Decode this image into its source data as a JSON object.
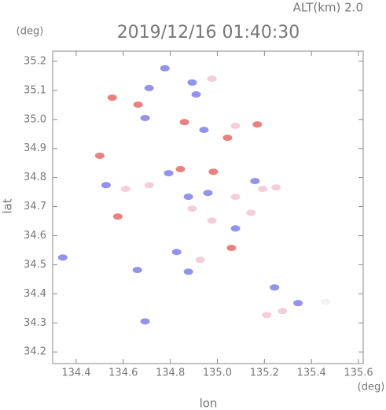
{
  "chart_data": {
    "type": "scatter",
    "title": "2019/12/16 01:40:30",
    "subtitle": "ALT(km) 2.0",
    "y_unit": "(deg)",
    "x_unit": "(deg)",
    "x_label": "lon",
    "y_label": "lat",
    "xlim": [
      134.3,
      135.62
    ],
    "ylim": [
      34.16,
      35.235
    ],
    "xticks": [
      134.4,
      134.6,
      134.8,
      {
        "value": 135.0,
        "label": "135.0"
      },
      135.2,
      135.4,
      135.6
    ],
    "yticks": [
      34.2,
      34.3,
      34.4,
      34.5,
      34.6,
      34.7,
      34.8,
      34.9,
      {
        "value": 35.0,
        "label": "35.0"
      },
      35.1,
      35.2
    ],
    "x": [
      134.553,
      134.663,
      134.71,
      134.777,
      134.893,
      134.91,
      134.977,
      134.86,
      134.943,
      135.077,
      135.043,
      135.17,
      134.693,
      134.5,
      134.527,
      134.61,
      134.71,
      134.793,
      134.843,
      134.877,
      134.96,
      135.077,
      135.193,
      135.25,
      135.16,
      134.577,
      134.977,
      135.077,
      135.143,
      135.06,
      134.827,
      134.927,
      134.877,
      134.343,
      134.693,
      134.66,
      135.243,
      135.277,
      135.343,
      135.21,
      135.46,
      134.983,
      134.893
    ],
    "y": [
      35.075,
      35.051,
      35.108,
      35.176,
      35.127,
      35.086,
      35.14,
      34.991,
      34.964,
      34.978,
      34.937,
      34.983,
      35.005,
      34.875,
      34.774,
      34.761,
      34.774,
      34.815,
      34.829,
      34.734,
      34.747,
      34.734,
      34.761,
      34.766,
      34.788,
      34.666,
      34.652,
      34.625,
      34.679,
      34.558,
      34.544,
      34.517,
      34.476,
      34.525,
      34.305,
      34.482,
      34.422,
      34.341,
      34.368,
      34.327,
      34.373,
      34.82,
      34.693
    ],
    "colors": [
      "#e86a6a",
      "#e86a6a",
      "#8080e8",
      "#8080e8",
      "#8080e8",
      "#8080e8",
      "#f2c6d2",
      "#e86a6a",
      "#8080e8",
      "#f2c6d2",
      "#e86a6a",
      "#e86a6a",
      "#8080e8",
      "#e86a6a",
      "#8080e8",
      "#f2c6d2",
      "#f2c6d2",
      "#8080e8",
      "#e86a6a",
      "#8080e8",
      "#8080e8",
      "#f2c6d2",
      "#f2c6d2",
      "#f2c6d2",
      "#8080e8",
      "#e86a6a",
      "#f2c6d2",
      "#8080e8",
      "#f2c6d2",
      "#e86a6a",
      "#8080e8",
      "#f2c6d2",
      "#8080e8",
      "#8080e8",
      "#8080e8",
      "#8080e8",
      "#8080e8",
      "#f2c6d2",
      "#8080e8",
      "#f2c6d2",
      "#f3eef2",
      "#e86a6a",
      "#f2c6d2"
    ]
  }
}
